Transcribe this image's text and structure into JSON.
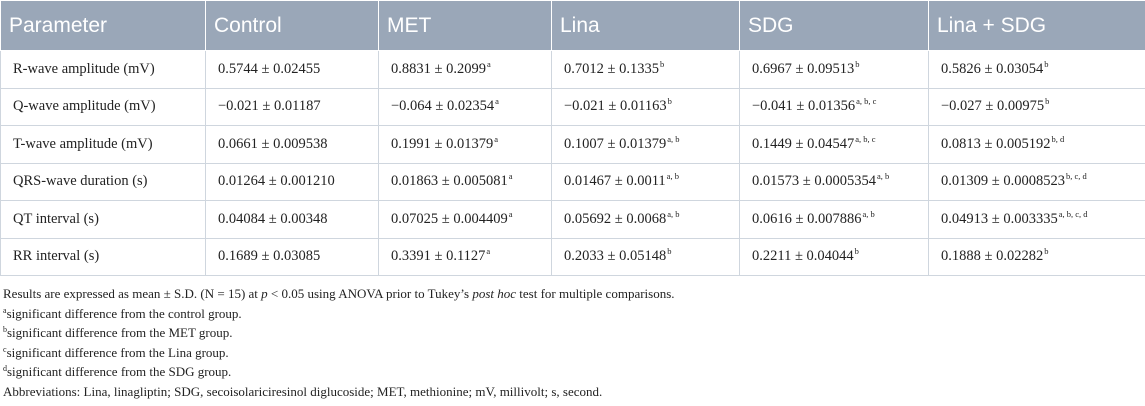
{
  "table": {
    "headers": [
      "Parameter",
      "Control",
      "MET",
      "Lina",
      "SDG",
      "Lina + SDG"
    ],
    "rows": [
      [
        {
          "v": "R-wave amplitude (mV)"
        },
        {
          "v": "0.5744 ± 0.02455"
        },
        {
          "v": "0.8831 ± 0.2099",
          "s": "a"
        },
        {
          "v": "0.7012 ± 0.1335",
          "s": "b"
        },
        {
          "v": "0.6967 ± 0.09513",
          "s": "b"
        },
        {
          "v": "0.5826 ± 0.03054",
          "s": "b"
        }
      ],
      [
        {
          "v": "Q-wave amplitude (mV)"
        },
        {
          "v": "−0.021 ± 0.01187"
        },
        {
          "v": "−0.064 ± 0.02354",
          "s": "a"
        },
        {
          "v": "−0.021 ± 0.01163",
          "s": "b"
        },
        {
          "v": "−0.041 ± 0.01356",
          "s": "a, b, c"
        },
        {
          "v": "−0.027 ± 0.00975",
          "s": "b"
        }
      ],
      [
        {
          "v": "T-wave amplitude (mV)"
        },
        {
          "v": "0.0661 ± 0.009538"
        },
        {
          "v": "0.1991 ± 0.01379",
          "s": "a"
        },
        {
          "v": "0.1007 ± 0.01379",
          "s": "a, b"
        },
        {
          "v": "0.1449 ± 0.04547",
          "s": "a, b, c"
        },
        {
          "v": "0.0813 ± 0.005192",
          "s": "b, d"
        }
      ],
      [
        {
          "v": "QRS-wave duration (s)"
        },
        {
          "v": "0.01264 ± 0.001210"
        },
        {
          "v": "0.01863 ± 0.005081",
          "s": "a"
        },
        {
          "v": "0.01467 ± 0.0011",
          "s": "a, b"
        },
        {
          "v": "0.01573 ± 0.0005354",
          "s": "a, b"
        },
        {
          "v": "0.01309 ± 0.0008523",
          "s": "b, c, d"
        }
      ],
      [
        {
          "v": "QT interval (s)"
        },
        {
          "v": "0.04084 ± 0.00348"
        },
        {
          "v": "0.07025 ± 0.004409",
          "s": "a"
        },
        {
          "v": "0.05692 ± 0.0068",
          "s": "a, b"
        },
        {
          "v": "0.0616 ± 0.007886",
          "s": "a, b"
        },
        {
          "v": "0.04913 ± 0.003335",
          "s": "a, b, c, d"
        }
      ],
      [
        {
          "v": "RR interval (s)"
        },
        {
          "v": "0.1689 ± 0.03085"
        },
        {
          "v": "0.3391 ± 0.1127",
          "s": "a"
        },
        {
          "v": "0.2033 ± 0.05148",
          "s": "b"
        },
        {
          "v": "0.2211 ± 0.04044",
          "s": "b"
        },
        {
          "v": "0.1888 ± 0.02282",
          "s": "b"
        }
      ]
    ]
  },
  "notes": {
    "results_pre": "Results are expressed as mean ± S.D. (N = 15) at ",
    "results_p": "p",
    "results_mid": " < 0.05 using ANOVA prior to Tukey’s ",
    "results_ph": "post hoc",
    "results_post": " test for multiple comparisons.",
    "footnotes": [
      {
        "mark": "a",
        "text": "significant difference from the control group."
      },
      {
        "mark": "b",
        "text": "significant difference from the MET group."
      },
      {
        "mark": "c",
        "text": "significant difference from the Lina group."
      },
      {
        "mark": "d",
        "text": "significant difference from the SDG group."
      }
    ],
    "abbreviations": "Abbreviations: Lina, linagliptin; SDG, secoisolariciresinol diglucoside; MET, methionine; mV, millivolt; s, second."
  }
}
